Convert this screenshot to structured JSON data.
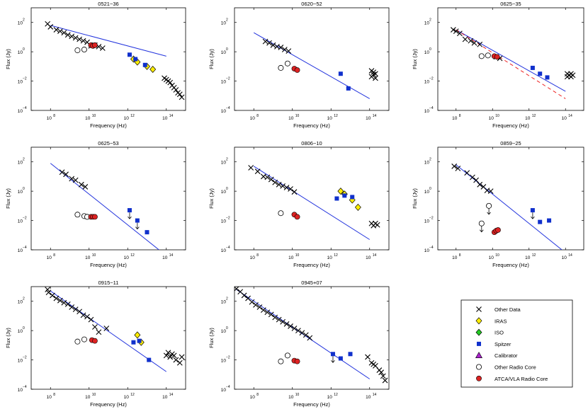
{
  "figure": {
    "colors": {
      "other_data": "#000000",
      "iras": "#ffee00",
      "iso": "#22cc22",
      "spitzer": "#1030cc",
      "calibrator": "#aa22cc",
      "other_radio_core": "#ffffff",
      "atca_core": "#dd2222",
      "fit_line": "#2233dd",
      "dashed_line": "#ee2222"
    },
    "legend": {
      "items": [
        {
          "key": "other_data",
          "label": "Other Data",
          "marker": "x"
        },
        {
          "key": "iras",
          "label": "IRAS",
          "marker": "diamond"
        },
        {
          "key": "iso",
          "label": "ISO",
          "marker": "diamond"
        },
        {
          "key": "spitzer",
          "label": "Spitzer",
          "marker": "square"
        },
        {
          "key": "calibrator",
          "label": "Calibrator",
          "marker": "triangle"
        },
        {
          "key": "other_radio_core",
          "label": "Other Radio Core",
          "marker": "circle-open"
        },
        {
          "key": "atca_core",
          "label": "ATCA/VLA Radio Core",
          "marker": "circle"
        }
      ]
    }
  },
  "chart_data": [
    {
      "type": "scatter",
      "title": "0521−36",
      "xlabel": "Frequency (Hz)",
      "ylabel": "Flux (Jy)",
      "xlim": [
        7,
        15
      ],
      "ylim": [
        -4,
        3
      ],
      "xticks": [
        "8",
        "10",
        "12",
        "14"
      ],
      "yticks": [
        "2",
        "0",
        "−2",
        "−4"
      ],
      "fit_line": [
        [
          8,
          1.8
        ],
        [
          14,
          -0.3
        ]
      ],
      "other_data": [
        [
          7.85,
          1.9
        ],
        [
          8.0,
          1.7
        ],
        [
          8.3,
          1.5
        ],
        [
          8.5,
          1.4
        ],
        [
          8.7,
          1.3
        ],
        [
          8.9,
          1.15
        ],
        [
          9.1,
          1.05
        ],
        [
          9.3,
          0.95
        ],
        [
          9.5,
          0.85
        ],
        [
          9.7,
          0.75
        ],
        [
          9.9,
          0.65
        ],
        [
          10.1,
          0.4
        ],
        [
          10.3,
          0.45
        ],
        [
          10.5,
          0.35
        ],
        [
          10.7,
          0.25
        ],
        [
          13.9,
          -1.8
        ],
        [
          14.0,
          -1.9
        ],
        [
          14.1,
          -2.0
        ],
        [
          14.2,
          -2.1
        ],
        [
          14.3,
          -2.3
        ],
        [
          14.4,
          -2.45
        ],
        [
          14.5,
          -2.6
        ],
        [
          14.6,
          -2.8
        ],
        [
          14.7,
          -2.9
        ],
        [
          14.8,
          -3.1
        ]
      ],
      "iras": [
        [
          12.3,
          -0.5
        ],
        [
          12.5,
          -0.7
        ],
        [
          13.0,
          -1.0
        ],
        [
          13.3,
          -1.2
        ]
      ],
      "spitzer": [
        [
          12.1,
          -0.2
        ],
        [
          12.4,
          -0.5
        ],
        [
          12.9,
          -0.9
        ]
      ],
      "other_radio_core": [
        [
          9.4,
          0.1
        ],
        [
          9.75,
          0.15
        ]
      ],
      "atca_core": [
        [
          10.1,
          0.45
        ],
        [
          10.2,
          0.4
        ],
        [
          10.3,
          0.45
        ]
      ],
      "upper_limits": []
    },
    {
      "type": "scatter",
      "title": "0620−52",
      "xlabel": "Frequency (Hz)",
      "ylabel": "Flux (Jy)",
      "xlim": [
        7,
        15
      ],
      "ylim": [
        -4,
        3
      ],
      "xticks": [
        "8",
        "10",
        "12",
        "14"
      ],
      "yticks": [
        "2",
        "0",
        "−2",
        "−4"
      ],
      "fit_line": [
        [
          8,
          1.3
        ],
        [
          14,
          -3.2
        ]
      ],
      "other_data": [
        [
          8.6,
          0.7
        ],
        [
          8.8,
          0.6
        ],
        [
          9.0,
          0.45
        ],
        [
          9.2,
          0.35
        ],
        [
          9.4,
          0.3
        ],
        [
          9.6,
          0.15
        ],
        [
          9.8,
          0.05
        ],
        [
          14.1,
          -1.3
        ],
        [
          14.2,
          -1.4
        ],
        [
          14.3,
          -1.5
        ],
        [
          14.1,
          -1.7
        ],
        [
          14.3,
          -1.8
        ],
        [
          14.2,
          -1.55
        ]
      ],
      "iras": [],
      "spitzer": [
        [
          12.5,
          -1.5
        ],
        [
          12.9,
          -2.5
        ]
      ],
      "other_radio_core": [
        [
          9.4,
          -1.1
        ],
        [
          9.75,
          -0.8
        ]
      ],
      "atca_core": [
        [
          10.1,
          -1.15
        ],
        [
          10.25,
          -1.25
        ]
      ],
      "upper_limits": []
    },
    {
      "type": "scatter",
      "title": "0625−35",
      "xlabel": "Frequency (Hz)",
      "ylabel": "Flux (Jy)",
      "xlim": [
        7,
        15
      ],
      "ylim": [
        -4,
        3
      ],
      "xticks": [
        "8",
        "10",
        "12",
        "14"
      ],
      "yticks": [
        "2",
        "0",
        "−2",
        "−4"
      ],
      "fit_line": [
        [
          8,
          1.5
        ],
        [
          14,
          -2.7
        ]
      ],
      "dashed_line": [
        [
          8,
          1.5
        ],
        [
          14,
          -3.2
        ]
      ],
      "other_data": [
        [
          7.85,
          1.5
        ],
        [
          8.0,
          1.4
        ],
        [
          8.2,
          1.25
        ],
        [
          8.5,
          0.85
        ],
        [
          8.8,
          0.75
        ],
        [
          9.0,
          0.6
        ],
        [
          9.3,
          0.5
        ],
        [
          10.2,
          -0.35
        ],
        [
          10.4,
          -0.45
        ],
        [
          14.1,
          -1.5
        ],
        [
          14.2,
          -1.6
        ],
        [
          14.3,
          -1.7
        ],
        [
          14.1,
          -1.7
        ],
        [
          14.3,
          -1.5
        ],
        [
          14.4,
          -1.6
        ]
      ],
      "iras": [],
      "spitzer": [
        [
          12.2,
          -1.1
        ],
        [
          12.6,
          -1.5
        ],
        [
          13.0,
          -1.75
        ]
      ],
      "other_radio_core": [
        [
          9.4,
          -0.3
        ],
        [
          9.75,
          -0.25
        ]
      ],
      "atca_core": [
        [
          10.1,
          -0.3
        ],
        [
          10.25,
          -0.35
        ]
      ],
      "upper_limits": []
    },
    {
      "type": "scatter",
      "title": "0625−53",
      "xlabel": "Frequency (Hz)",
      "ylabel": "Flux (Jy)",
      "xlim": [
        7,
        15
      ],
      "ylim": [
        -4,
        3
      ],
      "xticks": [
        "8",
        "10",
        "12",
        "14"
      ],
      "yticks": [
        "2",
        "0",
        "−2",
        "−4"
      ],
      "fit_line": [
        [
          8,
          1.9
        ],
        [
          14,
          -4.4
        ]
      ],
      "other_data": [
        [
          8.6,
          1.3
        ],
        [
          8.8,
          1.15
        ],
        [
          9.1,
          0.85
        ],
        [
          9.3,
          0.75
        ],
        [
          9.6,
          0.45
        ],
        [
          9.8,
          0.3
        ]
      ],
      "iras": [],
      "spitzer": [
        [
          12.1,
          -1.3
        ],
        [
          12.5,
          -2.0
        ],
        [
          13.0,
          -2.8
        ]
      ],
      "other_radio_core": [
        [
          9.4,
          -1.6
        ],
        [
          9.75,
          -1.7
        ],
        [
          9.9,
          -1.75
        ]
      ],
      "atca_core": [
        [
          10.1,
          -1.75
        ],
        [
          10.2,
          -1.75
        ],
        [
          10.3,
          -1.75
        ]
      ],
      "upper_limits": [
        [
          12.1,
          -1.3
        ],
        [
          12.5,
          -2.0
        ]
      ]
    },
    {
      "type": "scatter",
      "title": "0806−10",
      "xlabel": "Frequency (Hz)",
      "ylabel": "Flux (Jy)",
      "xlim": [
        7,
        15
      ],
      "ylim": [
        -4,
        3
      ],
      "xticks": [
        "8",
        "10",
        "12",
        "14"
      ],
      "yticks": [
        "2",
        "0",
        "−2",
        "−4"
      ],
      "fit_line": [
        [
          8,
          1.7
        ],
        [
          14,
          -3.3
        ]
      ],
      "other_data": [
        [
          7.85,
          1.6
        ],
        [
          8.2,
          1.35
        ],
        [
          8.5,
          1.0
        ],
        [
          8.7,
          0.95
        ],
        [
          8.9,
          0.8
        ],
        [
          9.1,
          0.6
        ],
        [
          9.3,
          0.45
        ],
        [
          9.5,
          0.35
        ],
        [
          9.7,
          0.25
        ],
        [
          9.9,
          0.15
        ],
        [
          10.1,
          -0.05
        ],
        [
          14.1,
          -2.2
        ],
        [
          14.2,
          -2.35
        ],
        [
          14.3,
          -2.2
        ],
        [
          14.4,
          -2.3
        ]
      ],
      "iras": [
        [
          12.5,
          0
        ],
        [
          12.7,
          -0.2
        ],
        [
          13.1,
          -0.6
        ],
        [
          13.4,
          -1.1
        ]
      ],
      "spitzer": [
        [
          12.3,
          -0.5
        ],
        [
          12.7,
          -0.3
        ],
        [
          13.1,
          -0.4
        ]
      ],
      "other_radio_core": [
        [
          9.4,
          -1.5
        ]
      ],
      "atca_core": [
        [
          10.1,
          -1.6
        ],
        [
          10.25,
          -1.75
        ]
      ],
      "upper_limits": []
    },
    {
      "type": "scatter",
      "title": "0859−25",
      "xlabel": "Frequency (Hz)",
      "ylabel": "Flux (Jy)",
      "xlim": [
        7,
        15
      ],
      "ylim": [
        -4,
        3
      ],
      "xticks": [
        "8",
        "10",
        "12",
        "14"
      ],
      "yticks": [
        "2",
        "0",
        "−2",
        "−4"
      ],
      "fit_line": [
        [
          8,
          1.8
        ],
        [
          13.9,
          -4.1
        ]
      ],
      "other_data": [
        [
          7.9,
          1.7
        ],
        [
          8.1,
          1.55
        ],
        [
          8.6,
          1.25
        ],
        [
          8.9,
          0.95
        ],
        [
          9.1,
          0.75
        ],
        [
          9.3,
          0.45
        ],
        [
          9.5,
          0.3
        ],
        [
          9.7,
          0.05
        ],
        [
          9.9,
          0
        ]
      ],
      "iras": [],
      "spitzer": [
        [
          12.2,
          -1.3
        ],
        [
          12.6,
          -2.1
        ],
        [
          13.1,
          -2.0
        ]
      ],
      "other_radio_core": [
        [
          9.4,
          -2.2
        ],
        [
          9.8,
          -1.0
        ]
      ],
      "atca_core": [
        [
          10.1,
          -2.8
        ],
        [
          10.2,
          -2.7
        ],
        [
          10.3,
          -2.65
        ]
      ],
      "upper_limits": [
        [
          9.4,
          -2.2
        ],
        [
          9.8,
          -1.0
        ],
        [
          12.2,
          -1.3
        ]
      ]
    },
    {
      "type": "scatter",
      "title": "0915−11",
      "xlabel": "Frequency (Hz)",
      "ylabel": "Flux (Jy)",
      "xlim": [
        7,
        15
      ],
      "ylim": [
        -4,
        3
      ],
      "xticks": [
        "8",
        "10",
        "12",
        "14"
      ],
      "yticks": [
        "2",
        "0",
        "−2",
        "−4"
      ],
      "fit_line": [
        [
          8,
          2.7
        ],
        [
          14,
          -2.8
        ]
      ],
      "other_data": [
        [
          7.85,
          2.8
        ],
        [
          7.9,
          2.6
        ],
        [
          8.1,
          2.4
        ],
        [
          8.3,
          2.2
        ],
        [
          8.5,
          2.05
        ],
        [
          8.7,
          1.9
        ],
        [
          8.9,
          1.8
        ],
        [
          9.1,
          1.6
        ],
        [
          9.3,
          1.45
        ],
        [
          9.5,
          1.3
        ],
        [
          9.7,
          1.05
        ],
        [
          9.9,
          0.95
        ],
        [
          10.1,
          0.75
        ],
        [
          10.3,
          0.25
        ],
        [
          10.5,
          -0.1
        ],
        [
          10.9,
          0.15
        ],
        [
          14.0,
          -1.7
        ],
        [
          14.1,
          -1.5
        ],
        [
          14.2,
          -1.8
        ],
        [
          14.3,
          -1.6
        ],
        [
          14.4,
          -1.7
        ],
        [
          14.5,
          -2.0
        ],
        [
          14.7,
          -2.2
        ],
        [
          14.8,
          -1.8
        ]
      ],
      "iras": [
        [
          12.5,
          -0.3
        ],
        [
          12.7,
          -0.8
        ]
      ],
      "spitzer": [
        [
          12.3,
          -0.8
        ],
        [
          12.6,
          -0.7
        ],
        [
          13.1,
          -2.0
        ]
      ],
      "other_radio_core": [
        [
          9.4,
          -0.75
        ],
        [
          9.75,
          -0.6
        ]
      ],
      "atca_core": [
        [
          10.15,
          -0.65
        ],
        [
          10.3,
          -0.7
        ]
      ],
      "upper_limits": []
    },
    {
      "type": "scatter",
      "title": "0945+07",
      "xlabel": "Frequency (Hz)",
      "ylabel": "Flux (Jy)",
      "xlim": [
        7,
        15
      ],
      "ylim": [
        -4,
        3
      ],
      "xticks": [
        "8",
        "10",
        "12",
        "14"
      ],
      "yticks": [
        "2",
        "0",
        "−2",
        "−4"
      ],
      "fit_line": [
        [
          7.1,
          2.8
        ],
        [
          14,
          -3.3
        ]
      ],
      "other_data": [
        [
          7.1,
          2.85
        ],
        [
          7.3,
          2.65
        ],
        [
          7.5,
          2.4
        ],
        [
          7.7,
          2.2
        ],
        [
          7.9,
          1.95
        ],
        [
          8.1,
          1.75
        ],
        [
          8.3,
          1.6
        ],
        [
          8.5,
          1.4
        ],
        [
          8.7,
          1.25
        ],
        [
          8.9,
          1.1
        ],
        [
          9.1,
          0.9
        ],
        [
          9.3,
          0.75
        ],
        [
          9.5,
          0.6
        ],
        [
          9.7,
          0.45
        ],
        [
          9.9,
          0.3
        ],
        [
          10.1,
          0.15
        ],
        [
          10.3,
          0
        ],
        [
          10.5,
          -0.15
        ],
        [
          10.7,
          -0.3
        ],
        [
          10.9,
          -0.5
        ],
        [
          13.9,
          -1.8
        ],
        [
          14.1,
          -2.2
        ],
        [
          14.2,
          -2.3
        ],
        [
          14.3,
          -2.4
        ],
        [
          14.5,
          -2.7
        ],
        [
          14.6,
          -2.85
        ],
        [
          14.7,
          -3.1
        ],
        [
          14.8,
          -3.4
        ]
      ],
      "iras": [],
      "spitzer": [
        [
          12.1,
          -1.6
        ],
        [
          12.5,
          -1.9
        ],
        [
          13.0,
          -1.6
        ]
      ],
      "other_radio_core": [
        [
          9.4,
          -2.1
        ],
        [
          9.75,
          -1.7
        ]
      ],
      "atca_core": [
        [
          10.1,
          -2.05
        ],
        [
          10.25,
          -2.1
        ]
      ],
      "upper_limits": [
        [
          12.1,
          -1.6
        ]
      ]
    }
  ]
}
